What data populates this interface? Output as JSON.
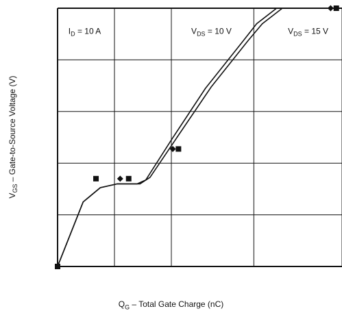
{
  "chart_data": {
    "type": "line",
    "xlabel_main": "Q",
    "xlabel_sub": "G",
    "xlabel_rest": " – Total Gate Charge (nC)",
    "ylabel_main": "V",
    "ylabel_sub": "GS",
    "ylabel_rest": " – Gate-to-Source Voltage (V)",
    "xlim": [
      0,
      10
    ],
    "ylim": [
      0,
      10
    ],
    "grid": true,
    "annotations": [
      {
        "main": "I",
        "sub": "D",
        "rest": " = 10 A",
        "x": 0.38,
        "y": 9.0
      },
      {
        "main": "V",
        "sub": "DS",
        "rest": " = 10 V",
        "x": 4.7,
        "y": 9.0
      },
      {
        "main": "V",
        "sub": "DS",
        "rest": " = 15 V",
        "x": 8.1,
        "y": 9.0
      }
    ],
    "series": [
      {
        "values": [
          [
            0,
            0
          ],
          [
            0.9,
            2.5
          ],
          [
            1.5,
            3.05
          ],
          [
            2.1,
            3.2
          ],
          [
            2.8,
            3.2
          ],
          [
            3.1,
            3.35
          ],
          [
            4.0,
            4.9
          ],
          [
            5.2,
            6.9
          ],
          [
            6.5,
            8.7
          ],
          [
            7.0,
            9.4
          ],
          [
            7.7,
            10
          ]
        ]
      },
      {
        "values": [
          [
            0,
            0
          ],
          [
            0.9,
            2.5
          ],
          [
            1.5,
            3.05
          ],
          [
            2.1,
            3.2
          ],
          [
            2.9,
            3.2
          ],
          [
            3.25,
            3.45
          ],
          [
            4.2,
            5.0
          ],
          [
            5.4,
            6.95
          ],
          [
            6.7,
            8.75
          ],
          [
            7.2,
            9.4
          ],
          [
            7.9,
            10
          ],
          [
            10,
            10
          ]
        ]
      }
    ],
    "markers": [
      {
        "shape": "square",
        "x": 1.35,
        "y": 3.4
      },
      {
        "shape": "diamond",
        "x": 2.2,
        "y": 3.4
      },
      {
        "shape": "square",
        "x": 2.5,
        "y": 3.4
      },
      {
        "shape": "diamond",
        "x": 4.05,
        "y": 4.55
      },
      {
        "shape": "square",
        "x": 4.25,
        "y": 4.55
      },
      {
        "shape": "square",
        "x": 0.0,
        "y": 0.0
      },
      {
        "shape": "diamond",
        "x": 9.6,
        "y": 10
      },
      {
        "shape": "square",
        "x": 9.8,
        "y": 10
      }
    ]
  }
}
